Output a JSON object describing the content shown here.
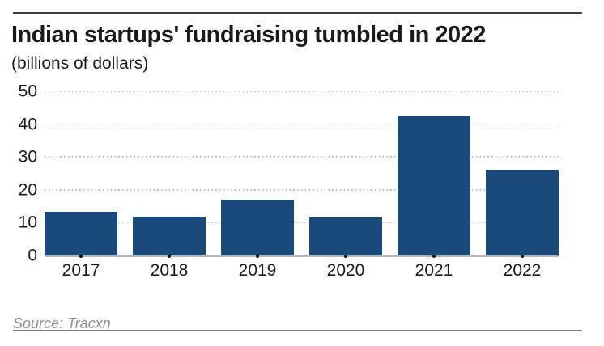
{
  "header": {
    "title": "Indian startups' fundraising tumbled in 2022",
    "subtitle": "(billions of dollars)"
  },
  "source": {
    "label": "Source: Tracxn"
  },
  "colors": {
    "bar": "#1a4a7c",
    "grid": "#bdbdbd",
    "baseline": "#b5b5b5",
    "text": "#1a1a1a",
    "source_text": "#8f8f8f",
    "rule_top": "#3c3c3c",
    "rule_bottom": "#7f7f7f"
  },
  "chart_data": {
    "type": "bar",
    "categories": [
      "2017",
      "2018",
      "2019",
      "2020",
      "2021",
      "2022"
    ],
    "values": [
      13.4,
      11.9,
      16.9,
      11.5,
      42.3,
      26.2
    ],
    "title": "Indian startups' fundraising tumbled in 2022",
    "subtitle": "(billions of dollars)",
    "xlabel": "",
    "ylabel": "",
    "ylim": [
      0,
      50
    ],
    "yticks": [
      0,
      10,
      20,
      30,
      40,
      50
    ],
    "grid": "horizontal-dotted",
    "legend": "none",
    "source": "Source: Tracxn"
  }
}
